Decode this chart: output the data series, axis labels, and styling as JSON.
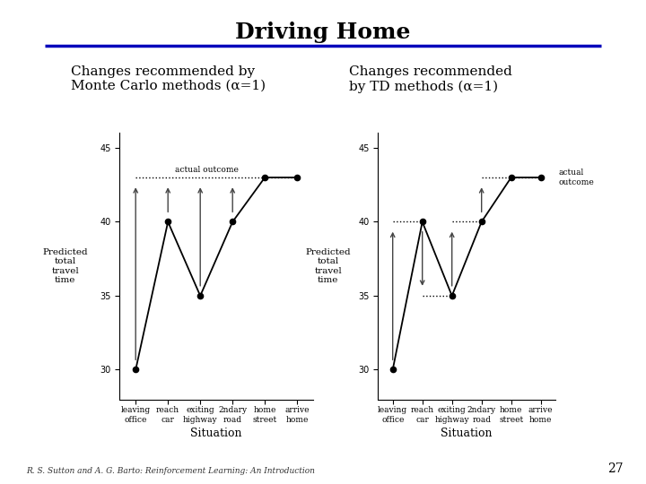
{
  "title": "Driving Home",
  "title_fontsize": 18,
  "title_fontweight": "bold",
  "title_color": "#000000",
  "rule_color": "#0000bb",
  "bg_color": "#ffffff",
  "footer_text": "R. S. Sutton and A. G. Barto: Reinforcement Learning: An Introduction",
  "footer_page": "27",
  "left_subtitle": "Changes recommended by\nMonte Carlo methods (α=1)",
  "right_subtitle": "Changes recommended\nby TD methods (α=1)",
  "subtitle_fontsize": 11,
  "situations": [
    "leaving\noffice",
    "reach\ncar",
    "exiting\nhighway",
    "2ndary\nroad",
    "home\nstreet",
    "arrive\nhome"
  ],
  "x_values": [
    0,
    1,
    2,
    3,
    4,
    5
  ],
  "y_values": [
    30,
    40,
    35,
    40,
    43,
    43
  ],
  "actual_outcome": 43,
  "ylim": [
    28,
    46
  ],
  "yticks": [
    30,
    35,
    40,
    45
  ],
  "ylabel": "Predicted\ntotal\ntravel\ntime",
  "xlabel": "Situation",
  "arrow_color": "#444444",
  "line_color": "#000000"
}
